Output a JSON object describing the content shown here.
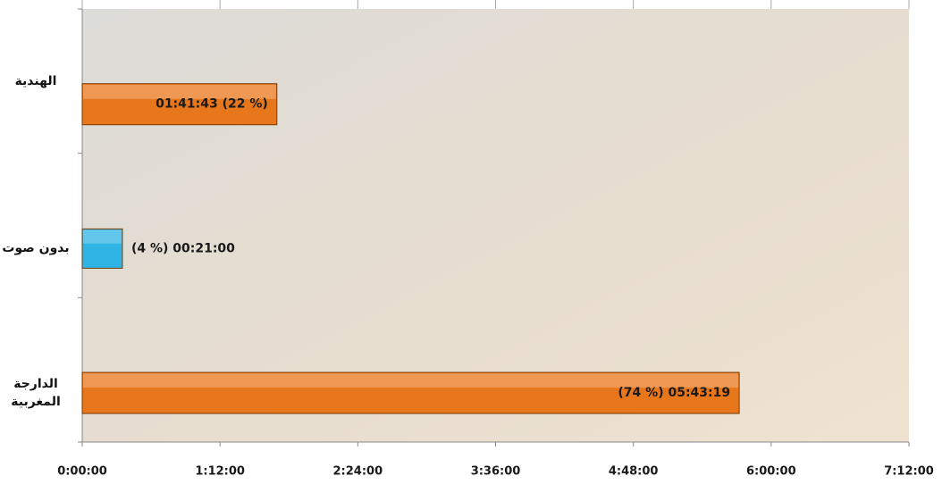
{
  "chart_data": {
    "type": "bar",
    "orientation": "horizontal",
    "categories": [
      "الهندية",
      "بدون صوت",
      "الدارجة المغربية"
    ],
    "values": [
      101.7167,
      21,
      343.3167
    ],
    "value_labels": [
      "01:41:43 (22 %)",
      "(4 %)  00:21:00",
      "(74 %) 05:43:19"
    ],
    "colors": [
      "#e8761a",
      "#2fb4e6",
      "#e8761a"
    ],
    "xlim": [
      0,
      432
    ],
    "xticks": [
      {
        "value": 0,
        "label": "0:00:00"
      },
      {
        "value": 72,
        "label": "1:12:00"
      },
      {
        "value": 144,
        "label": "2:24:00"
      },
      {
        "value": 216,
        "label": "3:36:00"
      },
      {
        "value": 288,
        "label": "4:48:00"
      },
      {
        "value": 360,
        "label": "6:00:00"
      },
      {
        "value": 432,
        "label": "7:12:00"
      }
    ]
  }
}
